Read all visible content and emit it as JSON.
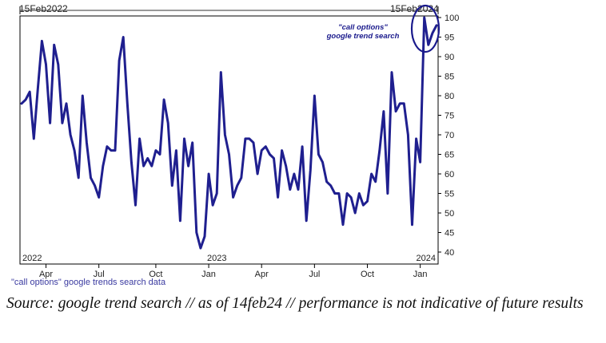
{
  "range": {
    "start": "15Feb2022",
    "end": "15Feb2024"
  },
  "footer_note": "\"call options\" google trends search data",
  "source_caption": "Source: google trend search // as of 14feb24 // performance is not indicative of future results",
  "colors": {
    "line": "#1f1f8f",
    "annotation": "#1a1a8c",
    "frame": "#000000"
  },
  "chart_data": {
    "type": "line",
    "title": "",
    "xlabel": "",
    "ylabel": "",
    "ylim": [
      38,
      100
    ],
    "yticks": [
      40,
      45,
      50,
      55,
      60,
      65,
      70,
      75,
      80,
      85,
      90,
      95,
      100
    ],
    "x_ticks": [
      {
        "label": "Apr",
        "week": 6
      },
      {
        "label": "Jul",
        "week": 19
      },
      {
        "label": "Oct",
        "week": 33
      },
      {
        "label": "Jan",
        "week": 46
      },
      {
        "label": "Apr",
        "week": 59
      },
      {
        "label": "Jul",
        "week": 72
      },
      {
        "label": "Oct",
        "week": 85
      },
      {
        "label": "Jan",
        "week": 98
      }
    ],
    "year_labels": [
      {
        "label": "2022",
        "week": 0
      },
      {
        "label": "2023",
        "week": 48
      },
      {
        "label": "2024",
        "week": 101
      }
    ],
    "annotation": {
      "line1": "\"call options\"",
      "line2": "google trend search"
    },
    "series": [
      {
        "name": "\"call options\" google trends search data",
        "x_unit": "weeks since 15Feb2022",
        "values": [
          78,
          79,
          81,
          69,
          82,
          94,
          88,
          73,
          93,
          88,
          73,
          78,
          70,
          66,
          59,
          80,
          68,
          59,
          57,
          54,
          62,
          67,
          66,
          66,
          89,
          95,
          78,
          63,
          52,
          69,
          62,
          64,
          62,
          66,
          65,
          79,
          73,
          57,
          66,
          48,
          69,
          62,
          68,
          45,
          41,
          44,
          60,
          52,
          55,
          86,
          70,
          65,
          54,
          57,
          59,
          69,
          69,
          68,
          60,
          66,
          67,
          65,
          64,
          54,
          66,
          62,
          56,
          60,
          56,
          67,
          48,
          61,
          80,
          65,
          63,
          58,
          57,
          55,
          55,
          47,
          55,
          54,
          50,
          55,
          52,
          53,
          60,
          58,
          66,
          76,
          55,
          86,
          76,
          78,
          78,
          70,
          47,
          69,
          63,
          100,
          93,
          96,
          98
        ]
      }
    ]
  }
}
